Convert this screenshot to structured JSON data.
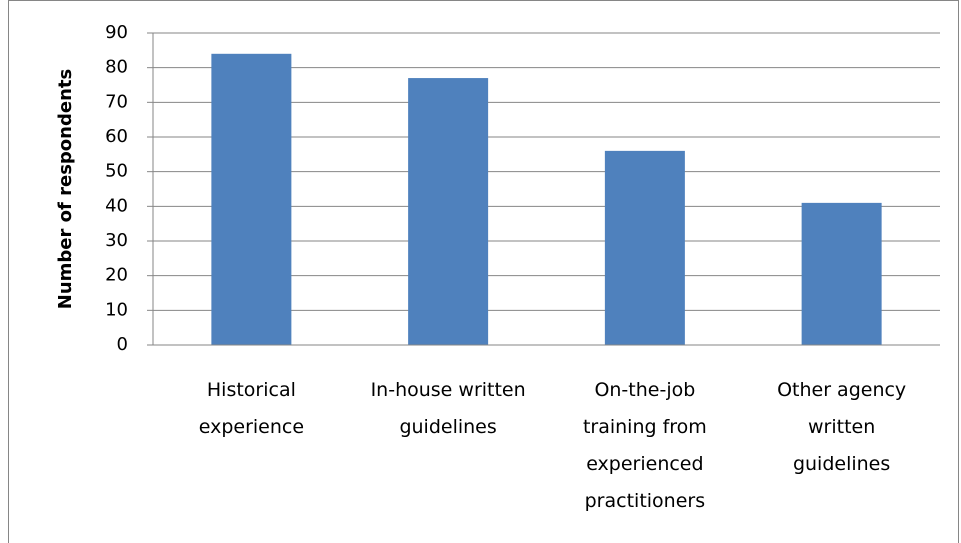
{
  "chart_data": {
    "type": "bar",
    "y_axis_label": "Number of respondents",
    "categories": [
      "Historical experience",
      "In-house written guidelines",
      "On-the-job training from experienced practitioners",
      "Other agency written guidelines"
    ],
    "values": [
      84,
      77,
      56,
      41
    ],
    "color": "#4f81bd",
    "ylim": [
      0,
      90
    ],
    "yticks": [
      0,
      10,
      20,
      30,
      40,
      50,
      60,
      70,
      80,
      90
    ],
    "grid": true
  }
}
